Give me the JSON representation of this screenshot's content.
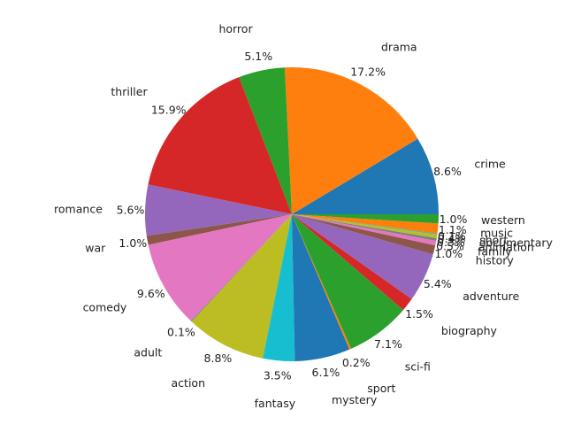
{
  "chart_data": {
    "type": "pie",
    "start_angle_deg": 0,
    "direction": "counterclockwise",
    "slices": [
      {
        "label": "crime",
        "value": 8.6,
        "pct_label": "8.6%",
        "color": "#1f77b4"
      },
      {
        "label": "drama",
        "value": 17.2,
        "pct_label": "17.2%",
        "color": "#ff7f0e"
      },
      {
        "label": "horror",
        "value": 5.1,
        "pct_label": "5.1%",
        "color": "#2ca02c"
      },
      {
        "label": "thriller",
        "value": 15.9,
        "pct_label": "15.9%",
        "color": "#d62728"
      },
      {
        "label": "romance",
        "value": 5.6,
        "pct_label": "5.6%",
        "color": "#9467bd"
      },
      {
        "label": "war",
        "value": 1.0,
        "pct_label": "1.0%",
        "color": "#8c564b"
      },
      {
        "label": "comedy",
        "value": 9.6,
        "pct_label": "9.6%",
        "color": "#e377c2"
      },
      {
        "label": "adult",
        "value": 0.1,
        "pct_label": "0.1%",
        "color": "#7f7f7f"
      },
      {
        "label": "action",
        "value": 8.8,
        "pct_label": "8.8%",
        "color": "#bcbd22"
      },
      {
        "label": "fantasy",
        "value": 3.5,
        "pct_label": "3.5%",
        "color": "#17becf"
      },
      {
        "label": "mystery",
        "value": 6.1,
        "pct_label": "6.1%",
        "color": "#1f77b4"
      },
      {
        "label": "sport",
        "value": 0.2,
        "pct_label": "0.2%",
        "color": "#ff7f0e"
      },
      {
        "label": "sci-fi",
        "value": 7.1,
        "pct_label": "7.1%",
        "color": "#2ca02c"
      },
      {
        "label": "biography",
        "value": 1.5,
        "pct_label": "1.5%",
        "color": "#d62728"
      },
      {
        "label": "adventure",
        "value": 5.4,
        "pct_label": "5.4%",
        "color": "#9467bd"
      },
      {
        "label": "history",
        "value": 1.0,
        "pct_label": "1.0%",
        "color": "#8c564b"
      },
      {
        "label": "family",
        "value": 0.5,
        "pct_label": "0.5%",
        "color": "#e377c2"
      },
      {
        "label": "animation",
        "value": 0.3,
        "pct_label": "0.3%",
        "color": "#7f7f7f"
      },
      {
        "label": "documentary",
        "value": 0.4,
        "pct_label": "0.4%",
        "color": "#bcbd22"
      },
      {
        "label": "short",
        "value": 0.1,
        "pct_label": "0.1%",
        "color": "#17becf"
      },
      {
        "label": "music",
        "value": 1.1,
        "pct_label": "1.1%",
        "color": "#ff7f0e"
      },
      {
        "label": "western",
        "value": 1.0,
        "pct_label": "1.0%",
        "color": "#2ca02c"
      }
    ]
  }
}
